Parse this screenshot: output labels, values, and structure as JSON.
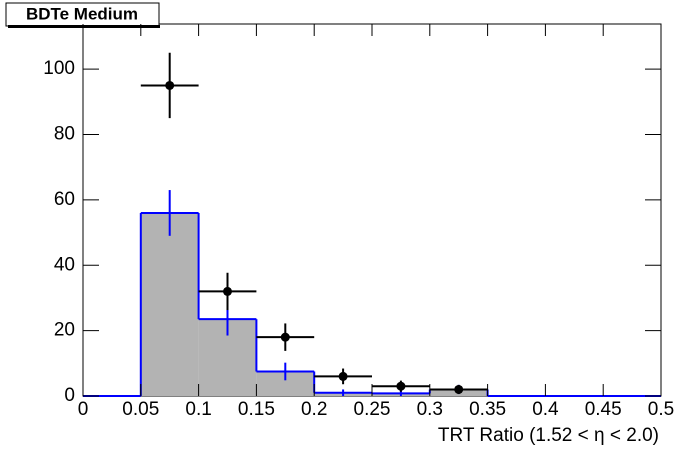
{
  "chart_data": {
    "type": "histogram",
    "title": "BDTe Medium",
    "x_label": "TRT Ratio (1.52 <  η < 2.0)",
    "bins": [
      0,
      0.05,
      0.1,
      0.15,
      0.2,
      0.25,
      0.3,
      0.35,
      0.4,
      0.45,
      0.5
    ],
    "hist": {
      "values": [
        0,
        56,
        23.5,
        7.5,
        1,
        0.8,
        2,
        0,
        0,
        0
      ],
      "errors": [
        0,
        7,
        5,
        2.7,
        1,
        0.8,
        1.4,
        0,
        0,
        0
      ],
      "color": "#0000ff",
      "fill": "#b3b3b3"
    },
    "points": {
      "x": [
        0.075,
        0.125,
        0.175,
        0.225,
        0.275,
        0.325
      ],
      "values": [
        95,
        32,
        18,
        6,
        3,
        2
      ],
      "errors": [
        10,
        5.7,
        4.2,
        2.4,
        1.7,
        1.4
      ],
      "x_errors": [
        0.025,
        0.025,
        0.025,
        0.025,
        0.025,
        0.025
      ],
      "color": "#000000"
    },
    "xlim": [
      0,
      0.5
    ],
    "ylim": [
      0,
      113.8
    ],
    "xticks": [
      0,
      0.05,
      0.1,
      0.15,
      0.2,
      0.25,
      0.3,
      0.35,
      0.4,
      0.45,
      0.5
    ],
    "yticks": [
      0,
      20,
      40,
      60,
      80,
      100
    ]
  }
}
